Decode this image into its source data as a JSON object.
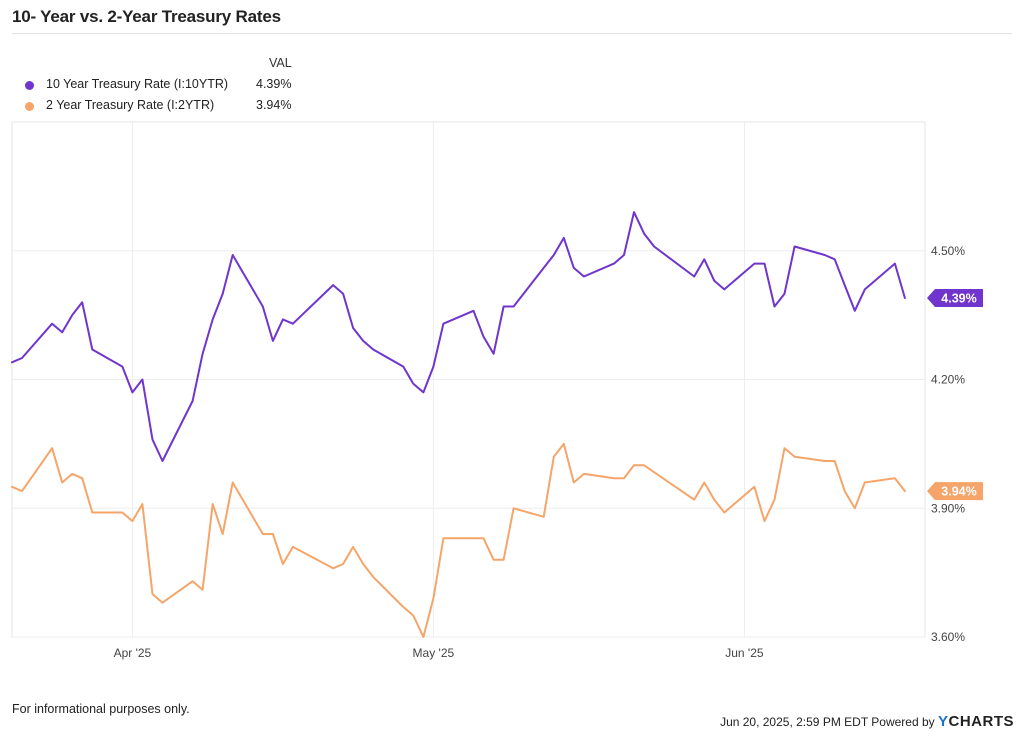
{
  "header": {
    "title": "10- Year vs. 2-Year Treasury Rates"
  },
  "legend": {
    "column_header": "VAL",
    "items": [
      {
        "label": "10 Year Treasury Rate (I:10YTR)",
        "value": "4.39%",
        "color": "#6f35cc"
      },
      {
        "label": "2 Year Treasury Rate (I:2YTR)",
        "value": "3.94%",
        "color": "#f5a56a"
      }
    ]
  },
  "footer": {
    "disclaimer": "For informational purposes only.",
    "timestamp": "Jun 20, 2025, 2:59 PM EDT Powered by",
    "brand_y": "Y",
    "brand_rest": "CHARTS"
  },
  "chart_data": {
    "type": "line",
    "y_axis_side": "right",
    "ylim": [
      3.6,
      4.8
    ],
    "xlim": [
      "2025-03-20",
      "2025-06-19"
    ],
    "y_ticks": [
      {
        "value": 3.6,
        "label": "3.60%"
      },
      {
        "value": 3.9,
        "label": "3.90%"
      },
      {
        "value": 4.2,
        "label": "4.20%"
      },
      {
        "value": 4.5,
        "label": "4.50%"
      }
    ],
    "x_ticks": [
      {
        "date": "2025-04-01",
        "label": "Apr '25"
      },
      {
        "date": "2025-05-01",
        "label": "May '25"
      },
      {
        "date": "2025-06-01",
        "label": "Jun '25"
      }
    ],
    "grid": true,
    "series": [
      {
        "name": "10 Year Treasury Rate (I:10YTR)",
        "color": "#6f35cc",
        "last_label": "4.39%",
        "points": [
          [
            "2025-03-20",
            4.24
          ],
          [
            "2025-03-21",
            4.25
          ],
          [
            "2025-03-24",
            4.33
          ],
          [
            "2025-03-25",
            4.31
          ],
          [
            "2025-03-26",
            4.35
          ],
          [
            "2025-03-27",
            4.38
          ],
          [
            "2025-03-28",
            4.27
          ],
          [
            "2025-03-31",
            4.23
          ],
          [
            "2025-04-01",
            4.17
          ],
          [
            "2025-04-02",
            4.2
          ],
          [
            "2025-04-03",
            4.06
          ],
          [
            "2025-04-04",
            4.01
          ],
          [
            "2025-04-07",
            4.15
          ],
          [
            "2025-04-08",
            4.26
          ],
          [
            "2025-04-09",
            4.34
          ],
          [
            "2025-04-10",
            4.4
          ],
          [
            "2025-04-11",
            4.49
          ],
          [
            "2025-04-14",
            4.37
          ],
          [
            "2025-04-15",
            4.29
          ],
          [
            "2025-04-16",
            4.34
          ],
          [
            "2025-04-17",
            4.33
          ],
          [
            "2025-04-21",
            4.42
          ],
          [
            "2025-04-22",
            4.4
          ],
          [
            "2025-04-23",
            4.32
          ],
          [
            "2025-04-24",
            4.29
          ],
          [
            "2025-04-25",
            4.27
          ],
          [
            "2025-04-28",
            4.23
          ],
          [
            "2025-04-29",
            4.19
          ],
          [
            "2025-04-30",
            4.17
          ],
          [
            "2025-05-01",
            4.23
          ],
          [
            "2025-05-02",
            4.33
          ],
          [
            "2025-05-05",
            4.36
          ],
          [
            "2025-05-06",
            4.3
          ],
          [
            "2025-05-07",
            4.26
          ],
          [
            "2025-05-08",
            4.37
          ],
          [
            "2025-05-09",
            4.37
          ],
          [
            "2025-05-12",
            4.46
          ],
          [
            "2025-05-13",
            4.49
          ],
          [
            "2025-05-14",
            4.53
          ],
          [
            "2025-05-15",
            4.46
          ],
          [
            "2025-05-16",
            4.44
          ],
          [
            "2025-05-19",
            4.47
          ],
          [
            "2025-05-20",
            4.49
          ],
          [
            "2025-05-21",
            4.59
          ],
          [
            "2025-05-22",
            4.54
          ],
          [
            "2025-05-23",
            4.51
          ],
          [
            "2025-05-27",
            4.44
          ],
          [
            "2025-05-28",
            4.48
          ],
          [
            "2025-05-29",
            4.43
          ],
          [
            "2025-05-30",
            4.41
          ],
          [
            "2025-06-02",
            4.47
          ],
          [
            "2025-06-03",
            4.47
          ],
          [
            "2025-06-04",
            4.37
          ],
          [
            "2025-06-05",
            4.4
          ],
          [
            "2025-06-06",
            4.51
          ],
          [
            "2025-06-09",
            4.49
          ],
          [
            "2025-06-10",
            4.48
          ],
          [
            "2025-06-11",
            4.42
          ],
          [
            "2025-06-12",
            4.36
          ],
          [
            "2025-06-13",
            4.41
          ],
          [
            "2025-06-16",
            4.47
          ],
          [
            "2025-06-17",
            4.39
          ]
        ]
      },
      {
        "name": "2 Year Treasury Rate (I:2YTR)",
        "color": "#f5a56a",
        "last_label": "3.94%",
        "points": [
          [
            "2025-03-20",
            3.95
          ],
          [
            "2025-03-21",
            3.94
          ],
          [
            "2025-03-24",
            4.04
          ],
          [
            "2025-03-25",
            3.96
          ],
          [
            "2025-03-26",
            3.98
          ],
          [
            "2025-03-27",
            3.97
          ],
          [
            "2025-03-28",
            3.89
          ],
          [
            "2025-03-31",
            3.89
          ],
          [
            "2025-04-01",
            3.87
          ],
          [
            "2025-04-02",
            3.91
          ],
          [
            "2025-04-03",
            3.7
          ],
          [
            "2025-04-04",
            3.68
          ],
          [
            "2025-04-07",
            3.73
          ],
          [
            "2025-04-08",
            3.71
          ],
          [
            "2025-04-09",
            3.91
          ],
          [
            "2025-04-10",
            3.84
          ],
          [
            "2025-04-11",
            3.96
          ],
          [
            "2025-04-14",
            3.84
          ],
          [
            "2025-04-15",
            3.84
          ],
          [
            "2025-04-16",
            3.77
          ],
          [
            "2025-04-17",
            3.81
          ],
          [
            "2025-04-21",
            3.76
          ],
          [
            "2025-04-22",
            3.77
          ],
          [
            "2025-04-23",
            3.81
          ],
          [
            "2025-04-24",
            3.77
          ],
          [
            "2025-04-25",
            3.74
          ],
          [
            "2025-04-28",
            3.67
          ],
          [
            "2025-04-29",
            3.65
          ],
          [
            "2025-04-30",
            3.6
          ],
          [
            "2025-05-01",
            3.69
          ],
          [
            "2025-05-02",
            3.83
          ],
          [
            "2025-05-05",
            3.83
          ],
          [
            "2025-05-06",
            3.83
          ],
          [
            "2025-05-07",
            3.78
          ],
          [
            "2025-05-08",
            3.78
          ],
          [
            "2025-05-09",
            3.9
          ],
          [
            "2025-05-12",
            3.88
          ],
          [
            "2025-05-13",
            4.02
          ],
          [
            "2025-05-14",
            4.05
          ],
          [
            "2025-05-15",
            3.96
          ],
          [
            "2025-05-16",
            3.98
          ],
          [
            "2025-05-19",
            3.97
          ],
          [
            "2025-05-20",
            3.97
          ],
          [
            "2025-05-21",
            4.0
          ],
          [
            "2025-05-22",
            4.0
          ],
          [
            "2025-05-27",
            3.92
          ],
          [
            "2025-05-28",
            3.96
          ],
          [
            "2025-05-29",
            3.92
          ],
          [
            "2025-05-30",
            3.89
          ],
          [
            "2025-06-02",
            3.95
          ],
          [
            "2025-06-03",
            3.87
          ],
          [
            "2025-06-04",
            3.92
          ],
          [
            "2025-06-05",
            4.04
          ],
          [
            "2025-06-06",
            4.02
          ],
          [
            "2025-06-09",
            4.01
          ],
          [
            "2025-06-10",
            4.01
          ],
          [
            "2025-06-11",
            3.94
          ],
          [
            "2025-06-12",
            3.9
          ],
          [
            "2025-06-13",
            3.96
          ],
          [
            "2025-06-16",
            3.97
          ],
          [
            "2025-06-17",
            3.94
          ]
        ]
      }
    ]
  }
}
